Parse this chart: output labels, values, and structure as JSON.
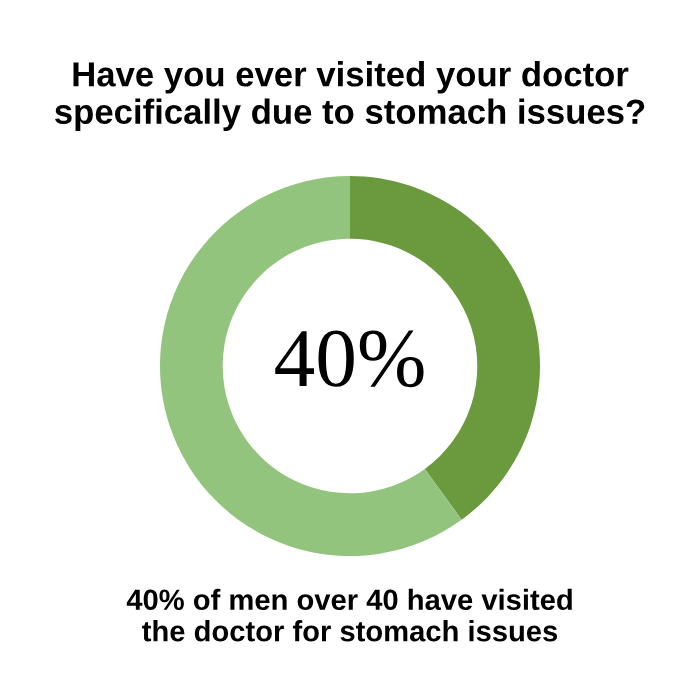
{
  "chart_data": {
    "type": "donut",
    "title": "Have you ever visited your doctor\nspecifically due to stomach issues?",
    "categories": [
      null,
      null
    ],
    "values": [
      40,
      60
    ],
    "colors": [
      "#6b9a3e",
      "#93c47d"
    ],
    "annotations": [
      "40%",
      "40% of men over 40 have visited\nthe doctor for stomach issues"
    ]
  }
}
